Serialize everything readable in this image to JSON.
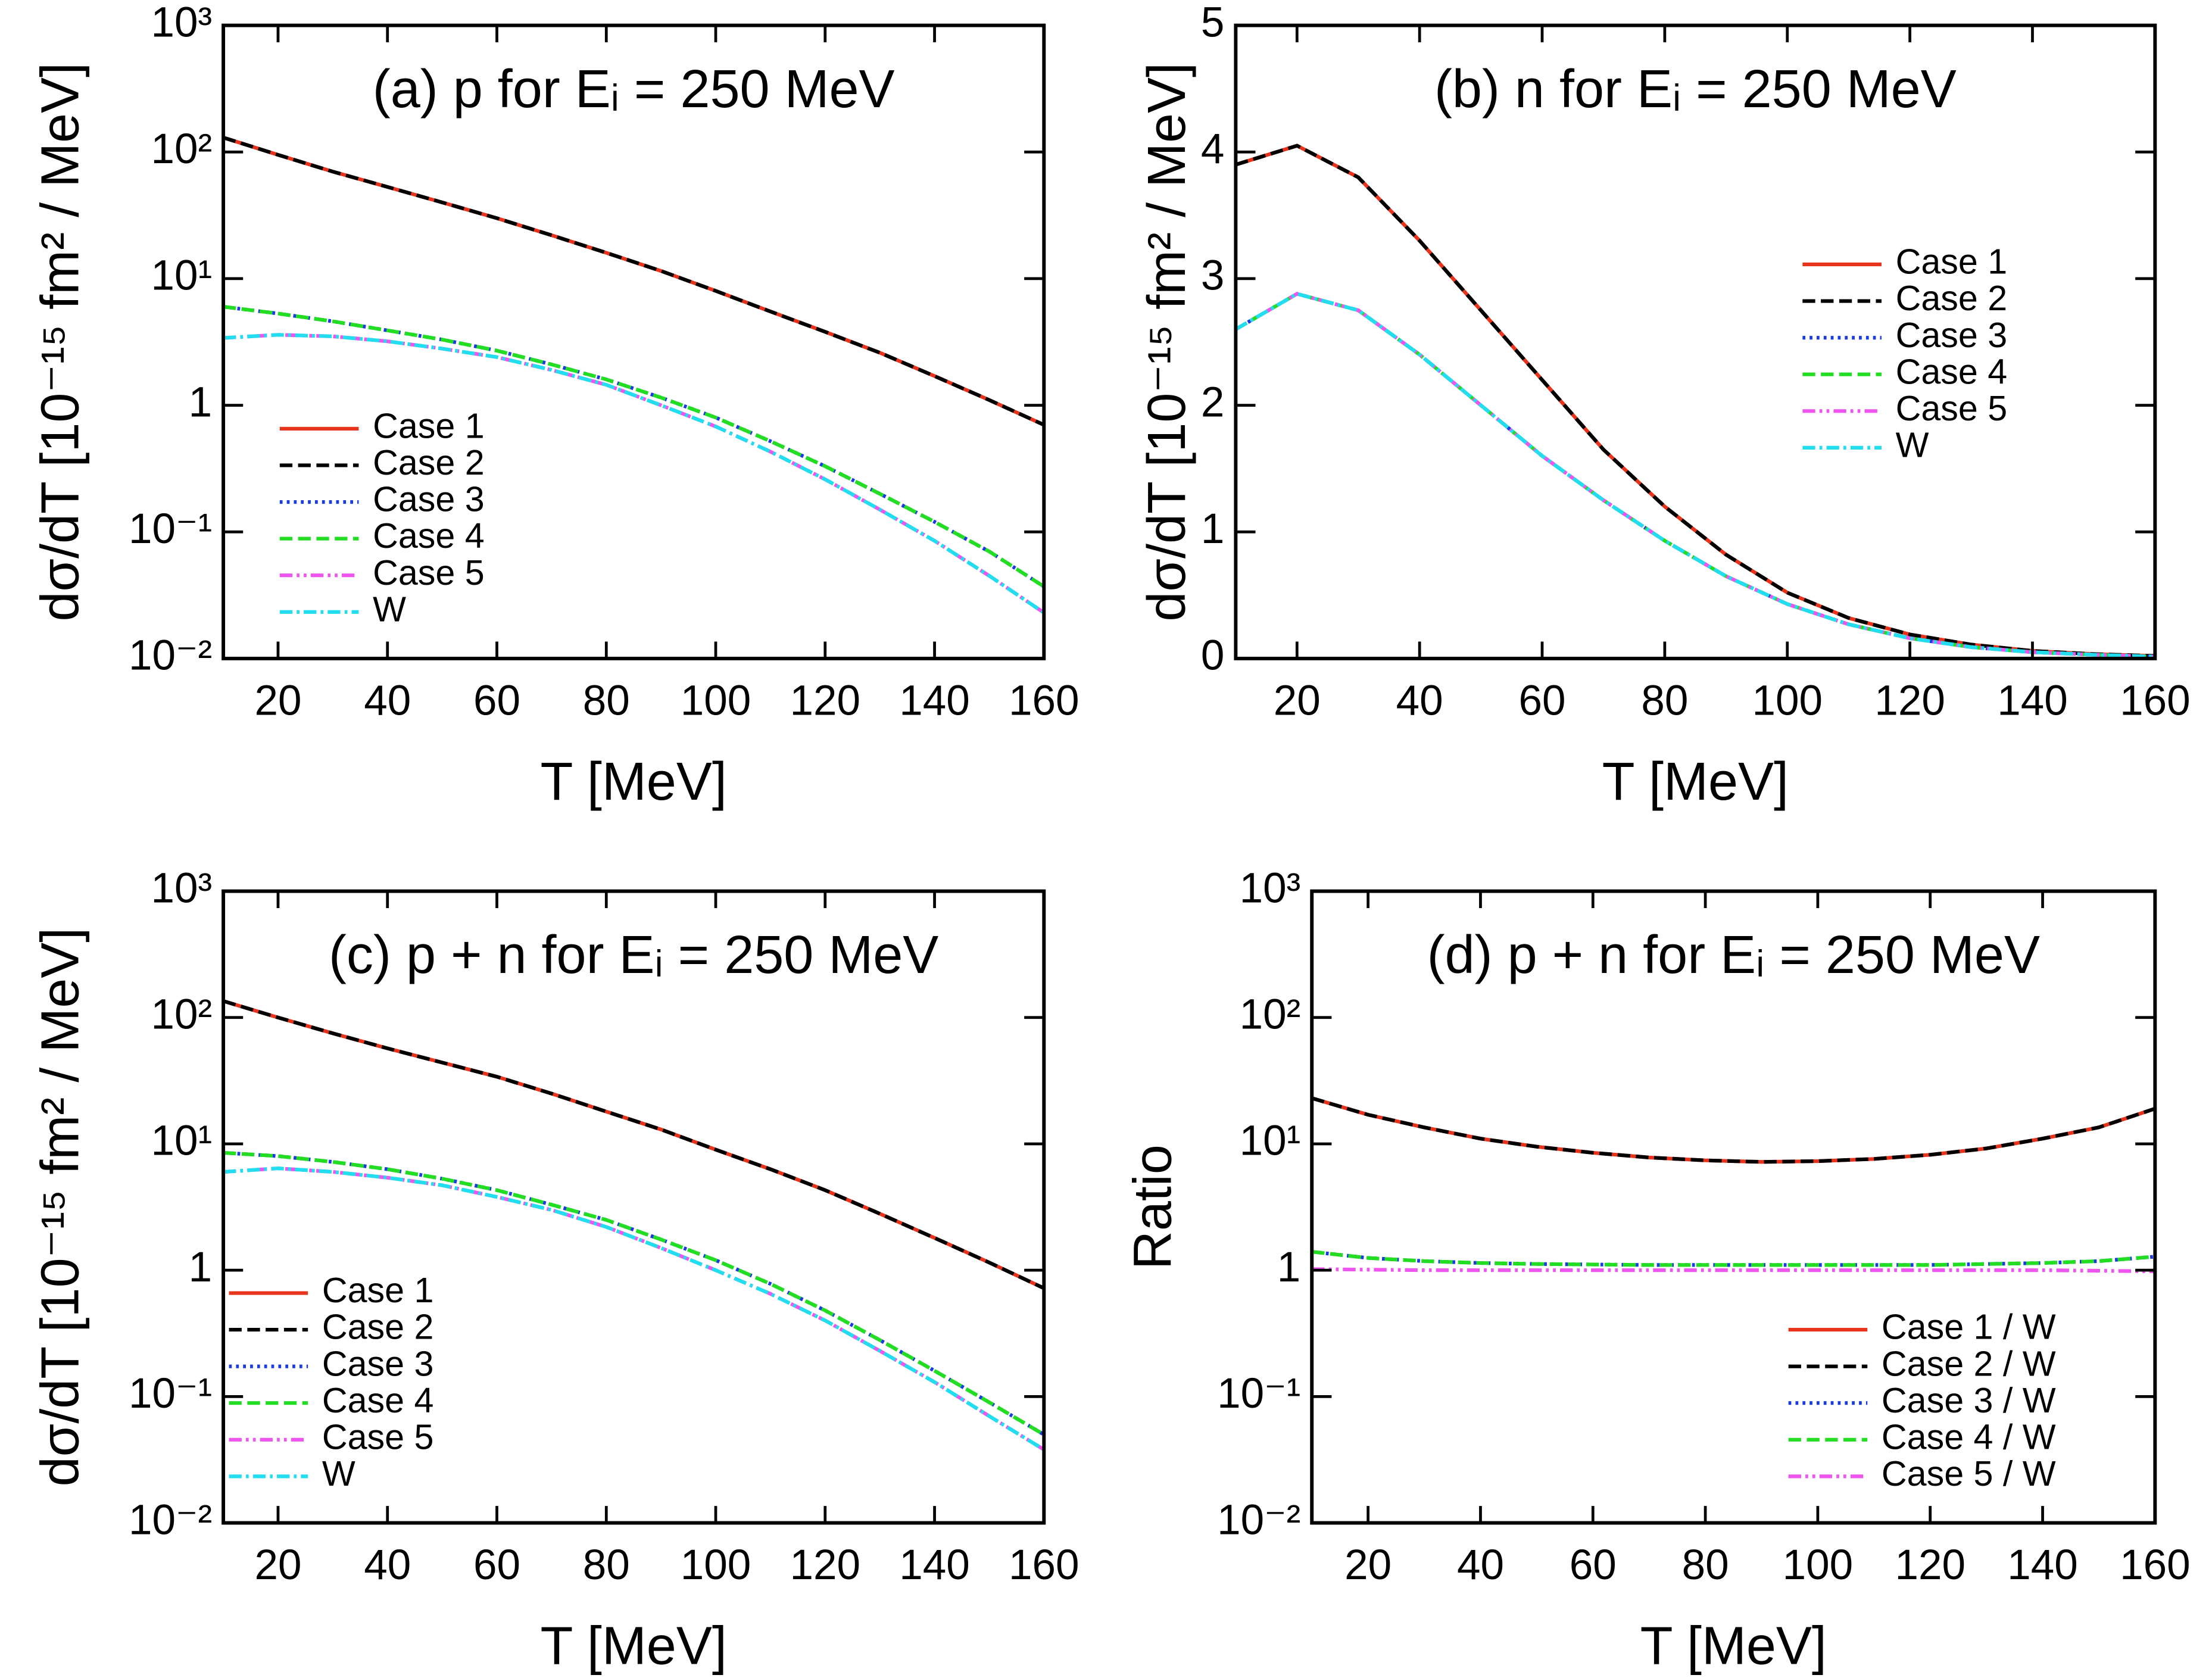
{
  "chart_data": [
    {
      "type": "line",
      "title": "(a) p for Eᵢ = 250 MeV",
      "xlabel": "T [MeV]",
      "ylabel": "dσ/dT [10⁻¹⁵ fm² / MeV]",
      "x": [
        10,
        20,
        30,
        40,
        50,
        60,
        70,
        80,
        90,
        100,
        110,
        120,
        130,
        140,
        150,
        160
      ],
      "xlim": [
        10,
        160
      ],
      "xticks": [
        20,
        40,
        60,
        80,
        100,
        120,
        140,
        160
      ],
      "yscale": "log",
      "ylim": [
        0.01,
        1000
      ],
      "yticks": [
        {
          "value": 1000,
          "label": "10³"
        },
        {
          "value": 100,
          "label": "10²"
        },
        {
          "value": 10,
          "label": "10¹"
        },
        1,
        {
          "value": 0.1,
          "label": "10⁻¹"
        },
        {
          "value": 0.01,
          "label": "10⁻²"
        }
      ],
      "legend_loc": "lower left",
      "series": [
        {
          "name": "Case 1",
          "color": "#e8341c",
          "dash": "solid",
          "values": [
            130,
            95,
            70,
            53,
            40,
            30,
            22,
            16,
            11.5,
            8,
            5.5,
            3.8,
            2.6,
            1.7,
            1.1,
            0.7
          ]
        },
        {
          "name": "Case 2",
          "color": "#000000",
          "dash": "dashed",
          "values": [
            130,
            95,
            70,
            53,
            40,
            30,
            22,
            16,
            11.5,
            8,
            5.5,
            3.8,
            2.6,
            1.7,
            1.1,
            0.7
          ]
        },
        {
          "name": "Case 3",
          "color": "#1a3be0",
          "dash": "dotted",
          "values": [
            6,
            5.3,
            4.6,
            3.9,
            3.3,
            2.7,
            2.1,
            1.6,
            1.15,
            0.8,
            0.52,
            0.33,
            0.2,
            0.12,
            0.07,
            0.037
          ]
        },
        {
          "name": "Case 4",
          "color": "#22dd22",
          "dash": "dashed",
          "values": [
            6,
            5.3,
            4.6,
            3.9,
            3.3,
            2.7,
            2.1,
            1.6,
            1.15,
            0.8,
            0.52,
            0.33,
            0.2,
            0.12,
            0.07,
            0.037
          ]
        },
        {
          "name": "Case 5",
          "color": "#ee55ee",
          "dash": "dashdotdot",
          "values": [
            3.4,
            3.6,
            3.5,
            3.2,
            2.8,
            2.4,
            1.9,
            1.45,
            1.0,
            0.68,
            0.43,
            0.26,
            0.15,
            0.085,
            0.045,
            0.023
          ]
        },
        {
          "name": "W",
          "color": "#22ddee",
          "dash": "dashdot",
          "values": [
            3.4,
            3.6,
            3.5,
            3.2,
            2.8,
            2.4,
            1.9,
            1.45,
            1.0,
            0.68,
            0.43,
            0.26,
            0.15,
            0.085,
            0.045,
            0.023
          ]
        }
      ]
    },
    {
      "type": "line",
      "title": "(b) n for Eᵢ = 250 MeV",
      "xlabel": "T [MeV]",
      "ylabel": "dσ/dT [10⁻¹⁵ fm² / MeV]",
      "x": [
        10,
        20,
        30,
        40,
        50,
        60,
        70,
        80,
        90,
        100,
        110,
        120,
        130,
        140,
        150,
        160
      ],
      "xlim": [
        10,
        160
      ],
      "xticks": [
        20,
        40,
        60,
        80,
        100,
        120,
        140,
        160
      ],
      "yscale": "linear",
      "ylim": [
        0,
        5
      ],
      "yticks": [
        0,
        1,
        2,
        3,
        4,
        5
      ],
      "legend_loc": "center right",
      "series": [
        {
          "name": "Case 1",
          "color": "#e8341c",
          "dash": "solid",
          "values": [
            3.9,
            4.05,
            3.8,
            3.3,
            2.75,
            2.2,
            1.65,
            1.2,
            0.82,
            0.52,
            0.32,
            0.19,
            0.11,
            0.06,
            0.035,
            0.02
          ]
        },
        {
          "name": "Case 2",
          "color": "#000000",
          "dash": "dashed",
          "values": [
            3.9,
            4.05,
            3.8,
            3.3,
            2.75,
            2.2,
            1.65,
            1.2,
            0.82,
            0.52,
            0.32,
            0.19,
            0.11,
            0.06,
            0.035,
            0.02
          ]
        },
        {
          "name": "Case 3",
          "color": "#1a3be0",
          "dash": "dotted",
          "values": [
            2.6,
            2.88,
            2.75,
            2.4,
            2.0,
            1.6,
            1.25,
            0.93,
            0.65,
            0.43,
            0.27,
            0.16,
            0.09,
            0.05,
            0.03,
            0.015
          ]
        },
        {
          "name": "Case 4",
          "color": "#22dd22",
          "dash": "dashed",
          "values": [
            2.6,
            2.88,
            2.75,
            2.4,
            2.0,
            1.6,
            1.25,
            0.93,
            0.65,
            0.43,
            0.27,
            0.16,
            0.09,
            0.05,
            0.03,
            0.015
          ]
        },
        {
          "name": "Case 5",
          "color": "#ee55ee",
          "dash": "dashdotdot",
          "values": [
            2.6,
            2.88,
            2.75,
            2.4,
            2.0,
            1.6,
            1.25,
            0.93,
            0.65,
            0.43,
            0.27,
            0.16,
            0.09,
            0.05,
            0.03,
            0.015
          ]
        },
        {
          "name": "W",
          "color": "#22ddee",
          "dash": "dashdot",
          "values": [
            2.6,
            2.88,
            2.75,
            2.4,
            2.0,
            1.6,
            1.25,
            0.93,
            0.65,
            0.43,
            0.27,
            0.16,
            0.09,
            0.05,
            0.03,
            0.015
          ]
        }
      ]
    },
    {
      "type": "line",
      "title": "(c) p + n for Eᵢ = 250 MeV",
      "xlabel": "T [MeV]",
      "ylabel": "dσ/dT [10⁻¹⁵ fm² / MeV]",
      "x": [
        10,
        20,
        30,
        40,
        50,
        60,
        70,
        80,
        90,
        100,
        110,
        120,
        130,
        140,
        150,
        160
      ],
      "xlim": [
        10,
        160
      ],
      "xticks": [
        20,
        40,
        60,
        80,
        100,
        120,
        140,
        160
      ],
      "yscale": "log",
      "ylim": [
        0.01,
        1000
      ],
      "yticks": [
        {
          "value": 1000,
          "label": "10³"
        },
        {
          "value": 100,
          "label": "10²"
        },
        {
          "value": 10,
          "label": "10¹"
        },
        1,
        {
          "value": 0.1,
          "label": "10⁻¹"
        },
        {
          "value": 0.01,
          "label": "10⁻²"
        }
      ],
      "legend_loc": "lower left",
      "series": [
        {
          "name": "Case 1",
          "color": "#e8341c",
          "dash": "solid",
          "values": [
            135,
            100,
            75,
            57,
            44,
            34,
            25,
            18,
            13,
            9,
            6.3,
            4.3,
            2.8,
            1.8,
            1.15,
            0.72
          ]
        },
        {
          "name": "Case 2",
          "color": "#000000",
          "dash": "dashed",
          "values": [
            135,
            100,
            75,
            57,
            44,
            34,
            25,
            18,
            13,
            9,
            6.3,
            4.3,
            2.8,
            1.8,
            1.15,
            0.72
          ]
        },
        {
          "name": "Case 3",
          "color": "#1a3be0",
          "dash": "dotted",
          "values": [
            8.5,
            8,
            7.2,
            6.3,
            5.3,
            4.3,
            3.3,
            2.5,
            1.75,
            1.2,
            0.78,
            0.48,
            0.28,
            0.16,
            0.09,
            0.05
          ]
        },
        {
          "name": "Case 4",
          "color": "#22dd22",
          "dash": "dashed",
          "values": [
            8.5,
            8,
            7.2,
            6.3,
            5.3,
            4.3,
            3.3,
            2.5,
            1.75,
            1.2,
            0.78,
            0.48,
            0.28,
            0.16,
            0.09,
            0.05
          ]
        },
        {
          "name": "Case 5",
          "color": "#ee55ee",
          "dash": "dashdotdot",
          "values": [
            6,
            6.4,
            6,
            5.4,
            4.7,
            3.8,
            3,
            2.2,
            1.5,
            1.0,
            0.65,
            0.4,
            0.23,
            0.13,
            0.07,
            0.038
          ]
        },
        {
          "name": "W",
          "color": "#22ddee",
          "dash": "dashdot",
          "values": [
            6,
            6.4,
            6,
            5.4,
            4.7,
            3.8,
            3,
            2.2,
            1.5,
            1.0,
            0.65,
            0.4,
            0.23,
            0.13,
            0.07,
            0.038
          ]
        }
      ]
    },
    {
      "type": "line",
      "title": "(d) p + n for Eᵢ = 250 MeV",
      "xlabel": "T [MeV]",
      "ylabel": "Ratio",
      "x": [
        10,
        20,
        30,
        40,
        50,
        60,
        70,
        80,
        90,
        100,
        110,
        120,
        130,
        140,
        150,
        160
      ],
      "xlim": [
        10,
        160
      ],
      "xticks": [
        20,
        40,
        60,
        80,
        100,
        120,
        140,
        160
      ],
      "yscale": "log",
      "ylim": [
        0.01,
        1000
      ],
      "yticks": [
        {
          "value": 1000,
          "label": "10³"
        },
        {
          "value": 100,
          "label": "10²"
        },
        {
          "value": 10,
          "label": "10¹"
        },
        1,
        {
          "value": 0.1,
          "label": "10⁻¹"
        },
        {
          "value": 0.01,
          "label": "10⁻²"
        }
      ],
      "legend_loc": "lower right",
      "series": [
        {
          "name": "Case 1 / W",
          "color": "#e8341c",
          "dash": "solid",
          "values": [
            23,
            17,
            13.5,
            11,
            9.5,
            8.5,
            7.8,
            7.4,
            7.2,
            7.3,
            7.6,
            8.2,
            9.2,
            11,
            13.5,
            19
          ]
        },
        {
          "name": "Case 2 / W",
          "color": "#000000",
          "dash": "dashed",
          "values": [
            23,
            17,
            13.5,
            11,
            9.5,
            8.5,
            7.8,
            7.4,
            7.2,
            7.3,
            7.6,
            8.2,
            9.2,
            11,
            13.5,
            19
          ]
        },
        {
          "name": "Case 3 / W",
          "color": "#1a3be0",
          "dash": "dotted",
          "values": [
            1.4,
            1.25,
            1.18,
            1.14,
            1.12,
            1.11,
            1.1,
            1.1,
            1.1,
            1.1,
            1.1,
            1.1,
            1.12,
            1.14,
            1.18,
            1.28
          ]
        },
        {
          "name": "Case 4 / W",
          "color": "#22dd22",
          "dash": "dashed",
          "values": [
            1.4,
            1.25,
            1.18,
            1.14,
            1.12,
            1.11,
            1.1,
            1.1,
            1.1,
            1.1,
            1.1,
            1.1,
            1.12,
            1.14,
            1.18,
            1.28
          ]
        },
        {
          "name": "Case 5 / W",
          "color": "#ee55ee",
          "dash": "dashdotdot",
          "values": [
            1.02,
            1.01,
            1.0,
            1.0,
            1.0,
            1.0,
            1.0,
            1.0,
            1.0,
            1.0,
            1.0,
            1.0,
            1.0,
            1.0,
            0.99,
            0.98
          ]
        }
      ]
    }
  ]
}
